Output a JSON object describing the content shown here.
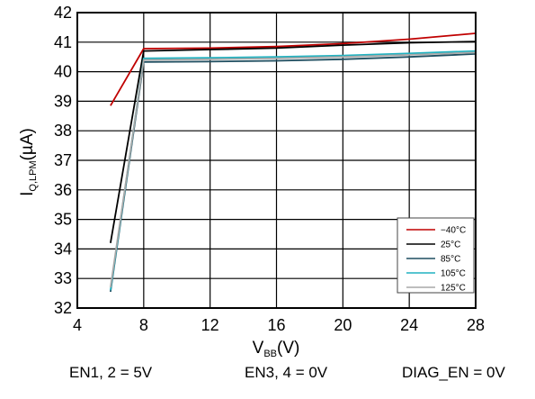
{
  "chart_data": {
    "type": "line",
    "xlabel": {
      "main": "V",
      "sub": "BB",
      "unit": "(V)"
    },
    "ylabel": {
      "main": "I",
      "sub": "Q,LPM",
      "unit": "(µA)"
    },
    "xlim": [
      4,
      28
    ],
    "ylim": [
      32,
      42
    ],
    "xticks": [
      4,
      8,
      12,
      16,
      20,
      24,
      28
    ],
    "yticks": [
      32,
      33,
      34,
      35,
      36,
      37,
      38,
      39,
      40,
      41,
      42
    ],
    "grid": true,
    "legend_position": "bottom-right",
    "series": [
      {
        "name": "−40°C",
        "color": "#c00000",
        "x": [
          6,
          8,
          12,
          16,
          20,
          24,
          28
        ],
        "y": [
          38.85,
          40.78,
          40.8,
          40.85,
          40.95,
          41.1,
          41.3
        ]
      },
      {
        "name": "25°C",
        "color": "#000000",
        "x": [
          6,
          8,
          12,
          16,
          20,
          24,
          28
        ],
        "y": [
          34.2,
          40.7,
          40.75,
          40.8,
          40.9,
          40.98,
          41.02
        ]
      },
      {
        "name": "85°C",
        "color": "#1f4e60",
        "x": [
          6,
          8,
          12,
          16,
          20,
          24,
          28
        ],
        "y": [
          32.55,
          40.33,
          40.34,
          40.37,
          40.42,
          40.5,
          40.6
        ]
      },
      {
        "name": "105°C",
        "color": "#20b2c0",
        "x": [
          6,
          8,
          12,
          16,
          20,
          24,
          28
        ],
        "y": [
          32.6,
          40.45,
          40.47,
          40.5,
          40.55,
          40.62,
          40.7
        ]
      },
      {
        "name": "125°C",
        "color": "#a8a8a8",
        "x": [
          6,
          8,
          12,
          16,
          20,
          24,
          28
        ],
        "y": [
          32.7,
          40.4,
          40.42,
          40.45,
          40.5,
          40.57,
          40.65
        ]
      }
    ]
  },
  "conditions": [
    "EN1, 2 = 5V",
    "EN3, 4 = 0V",
    "DIAG_EN = 0V"
  ]
}
